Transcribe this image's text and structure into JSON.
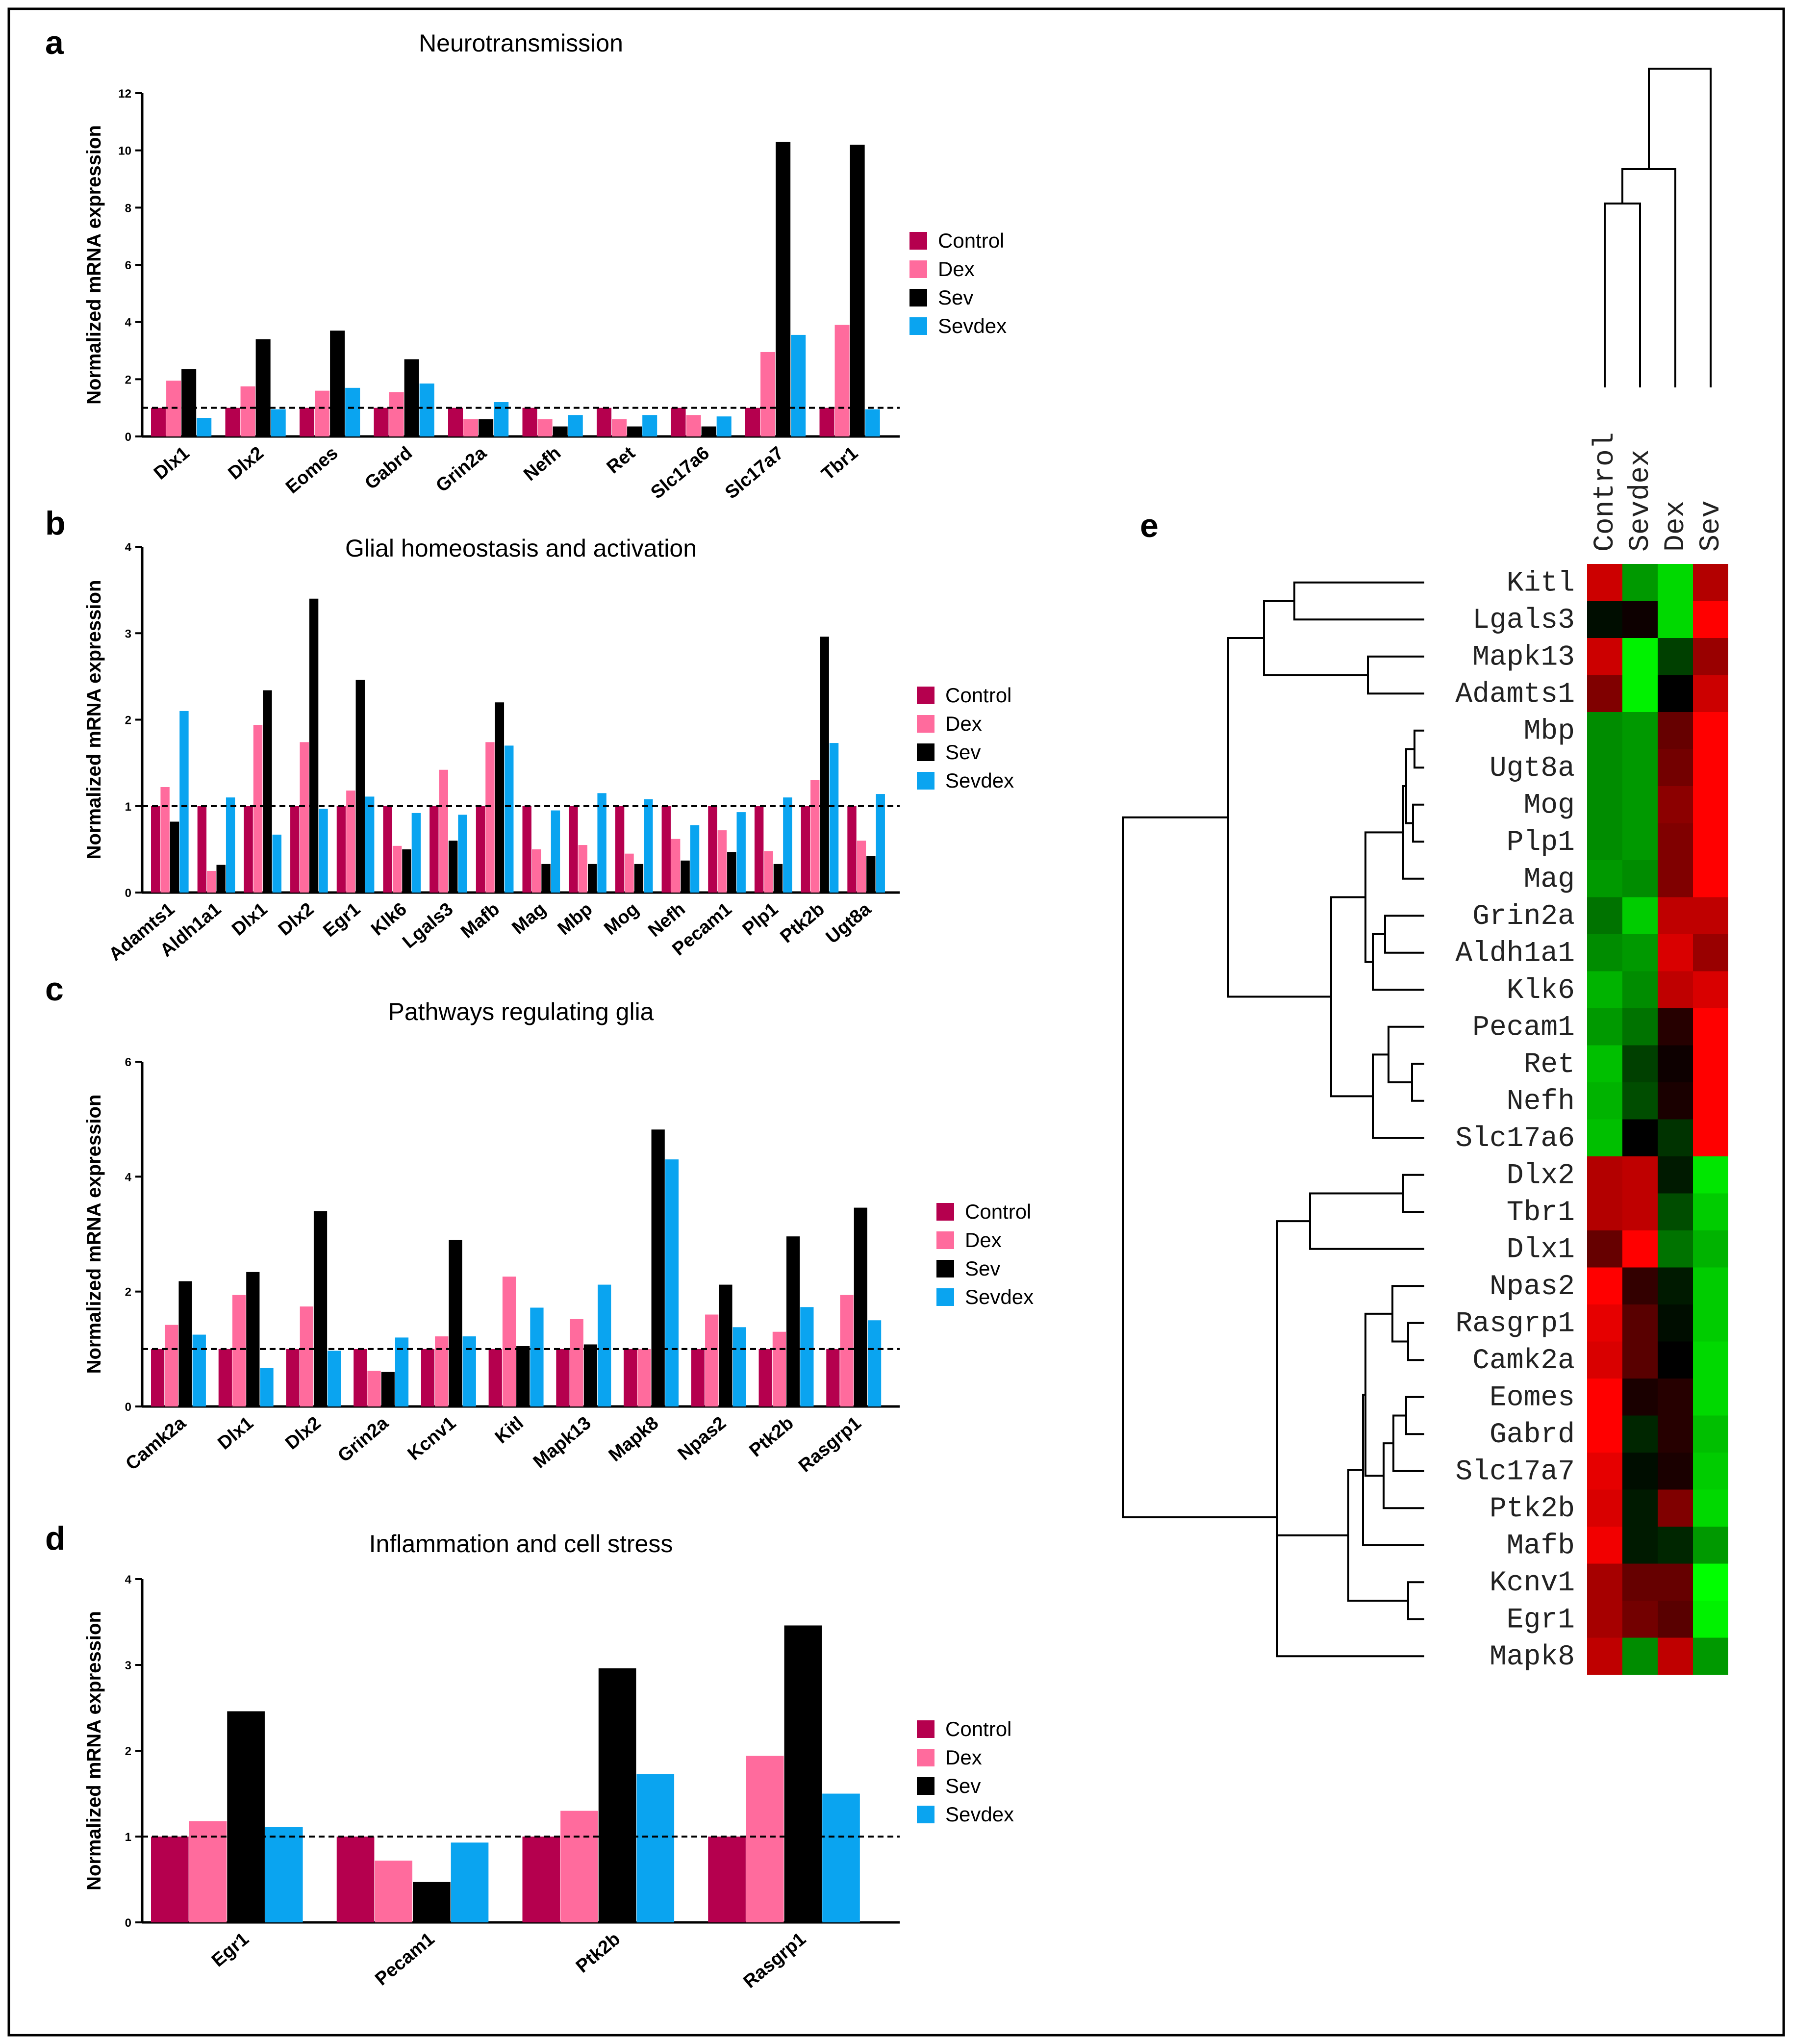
{
  "figure": {
    "border_color": "#000000"
  },
  "colors": {
    "Control": "#b5004e",
    "Dex": "#ff6b9d",
    "Sev": "#000000",
    "Sevdex": "#0aa4f0",
    "heat_red": "#ff0000",
    "heat_green": "#00ff00"
  },
  "legend": [
    "Control",
    "Dex",
    "Sev",
    "Sevdex"
  ],
  "chart_data": [
    {
      "panel": "a",
      "type": "bar",
      "title": "Neurotransmission",
      "ylabel": "Normalized mRNA expression",
      "ylim": [
        0,
        12
      ],
      "yticks": [
        "0",
        "2",
        "4",
        "6",
        "8",
        "10",
        "12"
      ],
      "reference_line": 1,
      "categories": [
        "Dlx1",
        "Dlx2",
        "Eomes",
        "Gabrd",
        "Grin2a",
        "Nefh",
        "Ret",
        "Slc17a6",
        "Slc17a7",
        "Tbr1"
      ],
      "series": [
        {
          "name": "Control",
          "values": [
            1,
            1,
            1,
            1,
            1,
            1,
            1,
            1,
            1,
            1
          ]
        },
        {
          "name": "Dex",
          "values": [
            1.95,
            1.75,
            1.6,
            1.55,
            0.6,
            0.6,
            0.6,
            0.75,
            2.95,
            3.9
          ]
        },
        {
          "name": "Sev",
          "values": [
            2.35,
            3.4,
            3.7,
            2.7,
            0.6,
            0.35,
            0.35,
            0.35,
            10.3,
            10.2
          ]
        },
        {
          "name": "Sevdex",
          "values": [
            0.65,
            0.95,
            1.7,
            1.85,
            1.2,
            0.75,
            0.75,
            0.7,
            3.55,
            0.95
          ]
        }
      ]
    },
    {
      "panel": "b",
      "type": "bar",
      "title": "Glial homeostasis and activation",
      "ylabel": "Normalized mRNA expression",
      "ylim": [
        0,
        4
      ],
      "yticks": [
        "0",
        "1",
        "2",
        "3",
        "4"
      ],
      "reference_line": 1,
      "categories": [
        "Adamts1",
        "Aldh1a1",
        "Dlx1",
        "Dlx2",
        "Egr1",
        "Klk6",
        "Lgals3",
        "Mafb",
        "Mag",
        "Mbp",
        "Mog",
        "Nefh",
        "Pecam1",
        "Plp1",
        "Ptk2b",
        "Ugt8a"
      ],
      "series": [
        {
          "name": "Control",
          "values": [
            1,
            1,
            1,
            1,
            1,
            1,
            1,
            1,
            1,
            1,
            1,
            1,
            1,
            1,
            1,
            1
          ]
        },
        {
          "name": "Dex",
          "values": [
            1.22,
            0.25,
            1.94,
            1.74,
            1.18,
            0.54,
            1.42,
            1.74,
            0.5,
            0.55,
            0.45,
            0.62,
            0.72,
            0.48,
            1.3,
            0.6
          ]
        },
        {
          "name": "Sev",
          "values": [
            0.82,
            0.32,
            2.34,
            3.4,
            2.46,
            0.5,
            0.6,
            2.2,
            0.33,
            0.33,
            0.33,
            0.37,
            0.47,
            0.33,
            2.96,
            0.42
          ]
        },
        {
          "name": "Sevdex",
          "values": [
            2.1,
            1.1,
            0.67,
            0.97,
            1.11,
            0.92,
            0.9,
            1.7,
            0.95,
            1.15,
            1.08,
            0.78,
            0.93,
            1.1,
            1.73,
            1.14
          ]
        }
      ]
    },
    {
      "panel": "c",
      "type": "bar",
      "title": "Pathways regulating glia",
      "ylabel": "Normalized mRNA expression",
      "ylim": [
        0,
        6
      ],
      "yticks": [
        "0",
        "2",
        "4",
        "6"
      ],
      "reference_line": 1,
      "categories": [
        "Camk2a",
        "Dlx1",
        "Dlx2",
        "Grin2a",
        "Kcnv1",
        "Kitl",
        "Mapk13",
        "Mapk8",
        "Npas2",
        "Ptk2b",
        "Rasgrp1"
      ],
      "series": [
        {
          "name": "Control",
          "values": [
            1,
            1,
            1,
            1,
            1,
            1,
            1,
            1,
            1,
            1,
            1
          ]
        },
        {
          "name": "Dex",
          "values": [
            1.42,
            1.94,
            1.74,
            0.62,
            1.22,
            2.26,
            1.52,
            1.0,
            1.6,
            1.3,
            1.94
          ]
        },
        {
          "name": "Sev",
          "values": [
            2.18,
            2.34,
            3.4,
            0.6,
            2.9,
            1.05,
            1.08,
            4.82,
            2.12,
            2.96,
            3.46
          ]
        },
        {
          "name": "Sevdex",
          "values": [
            1.25,
            0.67,
            0.97,
            1.2,
            1.22,
            1.72,
            2.12,
            4.3,
            1.38,
            1.73,
            1.5
          ]
        }
      ]
    },
    {
      "panel": "d",
      "type": "bar",
      "title": "Inflammation and cell stress",
      "ylabel": "Normalized mRNA expression",
      "ylim": [
        0,
        4
      ],
      "yticks": [
        "0",
        "1",
        "2",
        "3",
        "4"
      ],
      "reference_line": 1,
      "categories": [
        "Egr1",
        "Pecam1",
        "Ptk2b",
        "Rasgrp1"
      ],
      "series": [
        {
          "name": "Control",
          "values": [
            1,
            1,
            1,
            1
          ]
        },
        {
          "name": "Dex",
          "values": [
            1.18,
            0.72,
            1.3,
            1.94
          ]
        },
        {
          "name": "Sev",
          "values": [
            2.46,
            0.47,
            2.96,
            3.46
          ]
        },
        {
          "name": "Sevdex",
          "values": [
            1.11,
            0.93,
            1.73,
            1.5
          ]
        }
      ]
    },
    {
      "panel": "e",
      "type": "heatmap",
      "columns": [
        "Control",
        "Sevdex",
        "Dex",
        "Sev"
      ],
      "rows": [
        "Kitl",
        "Lgals3",
        "Mapk13",
        "Adamts1",
        "Mbp",
        "Ugt8a",
        "Mog",
        "Plp1",
        "Mag",
        "Grin2a",
        "Aldh1a1",
        "Klk6",
        "Pecam1",
        "Ret",
        "Nefh",
        "Slc17a6",
        "Dlx2",
        "Tbr1",
        "Dlx1",
        "Npas2",
        "Rasgrp1",
        "Camk2a",
        "Eomes",
        "Gabrd",
        "Slc17a7",
        "Ptk2b",
        "Mafb",
        "Kcnv1",
        "Egr1",
        "Mapk8"
      ],
      "values": [
        [
          0.8,
          -0.6,
          -0.85,
          0.7
        ],
        [
          -0.05,
          0.05,
          -0.85,
          1.0
        ],
        [
          0.8,
          -0.95,
          -0.25,
          0.6
        ],
        [
          0.5,
          -0.95,
          0.0,
          0.8
        ],
        [
          -0.55,
          -0.6,
          0.4,
          1.0
        ],
        [
          -0.55,
          -0.6,
          0.45,
          1.0
        ],
        [
          -0.55,
          -0.6,
          0.55,
          1.0
        ],
        [
          -0.55,
          -0.6,
          0.5,
          1.0
        ],
        [
          -0.6,
          -0.55,
          0.5,
          1.0
        ],
        [
          -0.45,
          -0.8,
          0.75,
          0.75
        ],
        [
          -0.55,
          -0.6,
          0.85,
          0.6
        ],
        [
          -0.7,
          -0.55,
          0.75,
          0.85
        ],
        [
          -0.6,
          -0.45,
          0.15,
          1.0
        ],
        [
          -0.75,
          -0.25,
          0.05,
          1.0
        ],
        [
          -0.7,
          -0.3,
          0.1,
          1.0
        ],
        [
          -0.75,
          0.0,
          -0.2,
          1.0
        ],
        [
          0.7,
          0.75,
          -0.1,
          -0.9
        ],
        [
          0.7,
          0.75,
          -0.3,
          -0.8
        ],
        [
          0.4,
          1.0,
          -0.45,
          -0.7
        ],
        [
          1.0,
          0.2,
          -0.1,
          -0.8
        ],
        [
          0.9,
          0.35,
          -0.05,
          -0.8
        ],
        [
          0.85,
          0.35,
          0.0,
          -0.85
        ],
        [
          1.0,
          0.1,
          0.15,
          -0.85
        ],
        [
          1.0,
          -0.15,
          0.15,
          -0.75
        ],
        [
          0.9,
          -0.05,
          0.1,
          -0.8
        ],
        [
          0.85,
          -0.1,
          0.5,
          -0.85
        ],
        [
          0.95,
          -0.1,
          -0.15,
          -0.6
        ],
        [
          0.65,
          0.4,
          0.4,
          -1.0
        ],
        [
          0.65,
          0.45,
          0.35,
          -0.95
        ],
        [
          0.75,
          -0.55,
          0.75,
          -0.6
        ]
      ]
    }
  ]
}
